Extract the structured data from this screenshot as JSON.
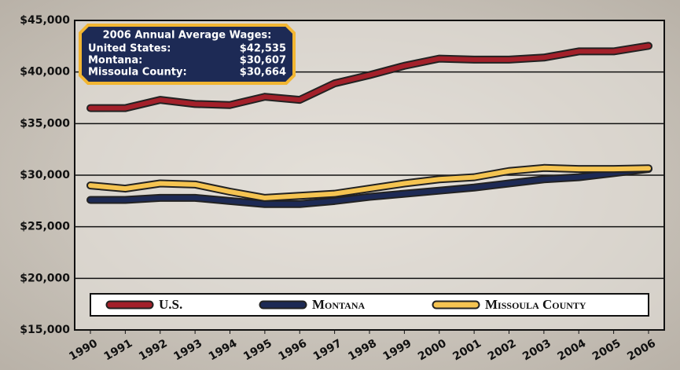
{
  "chart_data": {
    "type": "line",
    "x": [
      1990,
      1991,
      1992,
      1993,
      1994,
      1995,
      1996,
      1997,
      1998,
      1999,
      2000,
      2001,
      2002,
      2003,
      2004,
      2005,
      2006
    ],
    "xlim": [
      1990,
      2006
    ],
    "ylim": [
      15000,
      45000
    ],
    "yticks": [
      {
        "value": 15000,
        "label": "$15,000"
      },
      {
        "value": 20000,
        "label": "$20,000"
      },
      {
        "value": 25000,
        "label": "$25,000"
      },
      {
        "value": 30000,
        "label": "$30,000"
      },
      {
        "value": 35000,
        "label": "$35,000"
      },
      {
        "value": 40000,
        "label": "$40,000"
      },
      {
        "value": 45000,
        "label": "$45,000"
      }
    ],
    "grid": true,
    "legend": "bottom",
    "series": [
      {
        "name": "U.S.",
        "color": "#a3202a",
        "values": [
          36500,
          36500,
          37300,
          36900,
          36800,
          37600,
          37300,
          38900,
          39700,
          40600,
          41300,
          41200,
          41200,
          41400,
          42000,
          42000,
          42535
        ]
      },
      {
        "name": "Montana",
        "color": "#1d2a55",
        "values": [
          27600,
          27600,
          27800,
          27800,
          27500,
          27200,
          27200,
          27500,
          27900,
          28200,
          28500,
          28800,
          29200,
          29600,
          29800,
          30200,
          30607
        ]
      },
      {
        "name": "Missoula County",
        "color": "#f5c451",
        "values": [
          29000,
          28700,
          29200,
          29100,
          28400,
          27800,
          28000,
          28200,
          28700,
          29200,
          29600,
          29800,
          30400,
          30700,
          30600,
          30600,
          30664
        ]
      }
    ],
    "annotation": {
      "title": "2006 Annual Average Wages:",
      "rows": [
        {
          "label": "United States:",
          "value": "$42,535"
        },
        {
          "label": "Montana:",
          "value": "$30,607"
        },
        {
          "label": "Missoula County:",
          "value": "$30,664"
        }
      ]
    }
  }
}
